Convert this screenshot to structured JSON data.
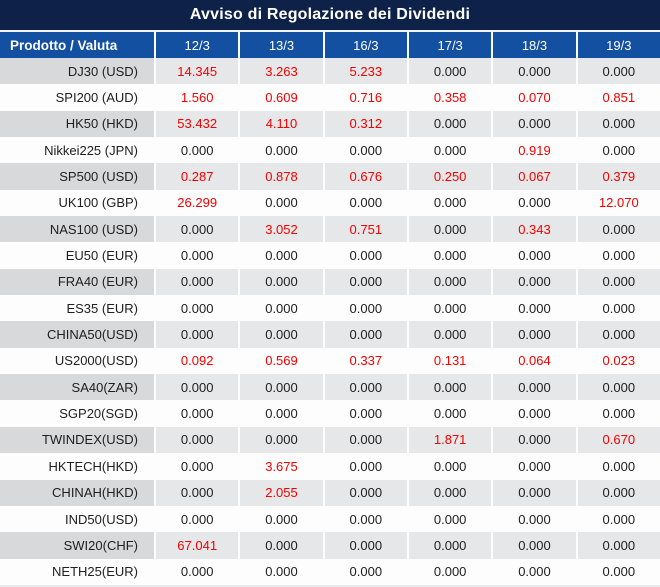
{
  "title": "Avviso di Regolazione dei Dividendi",
  "colors": {
    "title_bg": "#0e2249",
    "header_bg": "#1450a2",
    "header_text": "#ffffff",
    "stripe_label_bg": "#d8d9da",
    "stripe_cell_bg": "#e6e7e8",
    "plain_row_bg": "#fdfdfd",
    "value_nonzero": "#f40000",
    "value_zero": "#202020"
  },
  "table": {
    "label_header": "Prodotto / Valuta",
    "date_headers": [
      "12/3",
      "13/3",
      "16/3",
      "17/3",
      "18/3",
      "19/3"
    ],
    "zero_value": "0.000",
    "rows": [
      {
        "label": "DJ30 (USD)",
        "values": [
          "14.345",
          "3.263",
          "5.233",
          "0.000",
          "0.000",
          "0.000"
        ]
      },
      {
        "label": "SPI200 (AUD)",
        "values": [
          "1.560",
          "0.609",
          "0.716",
          "0.358",
          "0.070",
          "0.851"
        ]
      },
      {
        "label": "HK50 (HKD)",
        "values": [
          "53.432",
          "4.110",
          "0.312",
          "0.000",
          "0.000",
          "0.000"
        ]
      },
      {
        "label": "Nikkei225 (JPN)",
        "values": [
          "0.000",
          "0.000",
          "0.000",
          "0.000",
          "0.919",
          "0.000"
        ]
      },
      {
        "label": "SP500 (USD)",
        "values": [
          "0.287",
          "0.878",
          "0.676",
          "0.250",
          "0.067",
          "0.379"
        ]
      },
      {
        "label": "UK100 (GBP)",
        "values": [
          "26.299",
          "0.000",
          "0.000",
          "0.000",
          "0.000",
          "12.070"
        ]
      },
      {
        "label": "NAS100 (USD)",
        "values": [
          "0.000",
          "3.052",
          "0.751",
          "0.000",
          "0.343",
          "0.000"
        ]
      },
      {
        "label": "EU50 (EUR)",
        "values": [
          "0.000",
          "0.000",
          "0.000",
          "0.000",
          "0.000",
          "0.000"
        ]
      },
      {
        "label": "FRA40 (EUR)",
        "values": [
          "0.000",
          "0.000",
          "0.000",
          "0.000",
          "0.000",
          "0.000"
        ]
      },
      {
        "label": "ES35 (EUR)",
        "values": [
          "0.000",
          "0.000",
          "0.000",
          "0.000",
          "0.000",
          "0.000"
        ]
      },
      {
        "label": "CHINA50(USD)",
        "values": [
          "0.000",
          "0.000",
          "0.000",
          "0.000",
          "0.000",
          "0.000"
        ]
      },
      {
        "label": "US2000(USD)",
        "values": [
          "0.092",
          "0.569",
          "0.337",
          "0.131",
          "0.064",
          "0.023"
        ]
      },
      {
        "label": "SA40(ZAR)",
        "values": [
          "0.000",
          "0.000",
          "0.000",
          "0.000",
          "0.000",
          "0.000"
        ]
      },
      {
        "label": "SGP20(SGD)",
        "values": [
          "0.000",
          "0.000",
          "0.000",
          "0.000",
          "0.000",
          "0.000"
        ]
      },
      {
        "label": "TWINDEX(USD)",
        "values": [
          "0.000",
          "0.000",
          "0.000",
          "1.871",
          "0.000",
          "0.670"
        ]
      },
      {
        "label": "HKTECH(HKD)",
        "values": [
          "0.000",
          "3.675",
          "0.000",
          "0.000",
          "0.000",
          "0.000"
        ]
      },
      {
        "label": "CHINAH(HKD)",
        "values": [
          "0.000",
          "2.055",
          "0.000",
          "0.000",
          "0.000",
          "0.000"
        ]
      },
      {
        "label": "IND50(USD)",
        "values": [
          "0.000",
          "0.000",
          "0.000",
          "0.000",
          "0.000",
          "0.000"
        ]
      },
      {
        "label": "SWI20(CHF)",
        "values": [
          "67.041",
          "0.000",
          "0.000",
          "0.000",
          "0.000",
          "0.000"
        ]
      },
      {
        "label": "NETH25(EUR)",
        "values": [
          "0.000",
          "0.000",
          "0.000",
          "0.000",
          "0.000",
          "0.000"
        ]
      }
    ]
  }
}
